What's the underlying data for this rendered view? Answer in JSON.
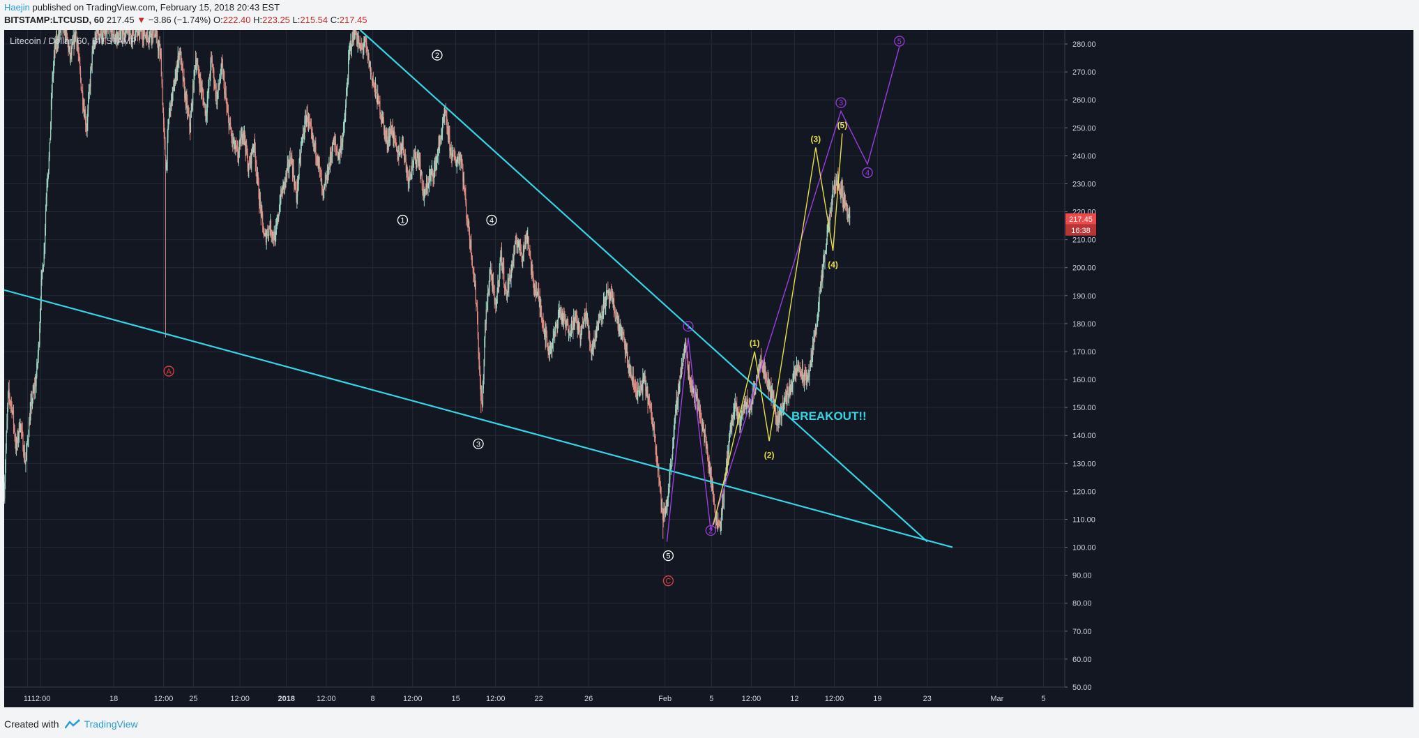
{
  "header": {
    "author": "Haejin",
    "published_text": "published on TradingView.com, February 15, 2018 20:43 EST",
    "symbol": "BITSTAMP:LTCUSD, 60",
    "last": "217.45",
    "arrow": "▼",
    "change": "−3.86 (−1.74%)",
    "o_label": "O:",
    "o_val": "222.40",
    "h_label": "H:",
    "h_val": "223.25",
    "l_label": "L:",
    "l_val": "215.54",
    "c_label": "C:",
    "c_val": "217.45"
  },
  "footer": {
    "created_with": "Created with",
    "brand": "TradingView"
  },
  "colors": {
    "background": "#131722",
    "grid": "#262a36",
    "bull": "#9fd4c3",
    "bear": "#e08a82",
    "trendline": "#33d6e6",
    "purple": "#9a3ee0",
    "yellow": "#e8e04a",
    "red": "#e04040",
    "white": "#ffffff",
    "price_tag": "#ec4a4a"
  },
  "chart_data": {
    "type": "candlestick",
    "title": "Litecoin / Dollar, 60, BITSTAMP",
    "y_axis": {
      "range": [
        50,
        285
      ],
      "ticks": [
        "50.00",
        "60.00",
        "70.00",
        "80.00",
        "90.00",
        "100.00",
        "110.00",
        "120.00",
        "130.00",
        "140.00",
        "150.00",
        "160.00",
        "170.00",
        "180.00",
        "190.00",
        "200.00",
        "210.00",
        "220.00",
        "230.00",
        "240.00",
        "250.00",
        "260.00",
        "270.00",
        "280.00"
      ]
    },
    "x_axis": {
      "range_days": [
        0,
        79.8
      ],
      "ticks": [
        {
          "label": "11",
          "day": 1.76
        },
        {
          "label": "12:00",
          "day": 2.76
        },
        {
          "label": "18",
          "day": 8.25
        },
        {
          "label": "12:00",
          "day": 12.0
        },
        {
          "label": "25",
          "day": 14.25
        },
        {
          "label": "12:00",
          "day": 17.75
        },
        {
          "label": "2018",
          "day": 21.25
        },
        {
          "label": "12:00",
          "day": 24.25
        },
        {
          "label": "8",
          "day": 27.75
        },
        {
          "label": "12:00",
          "day": 30.75
        },
        {
          "label": "15",
          "day": 34.0
        },
        {
          "label": "12:00",
          "day": 37.0
        },
        {
          "label": "22",
          "day": 40.25
        },
        {
          "label": "26",
          "day": 44.0
        },
        {
          "label": "Feb",
          "day": 49.75
        },
        {
          "label": "5",
          "day": 53.25
        },
        {
          "label": "12:00",
          "day": 56.25
        },
        {
          "label": "12",
          "day": 59.5
        },
        {
          "label": "12:00",
          "day": 62.5
        },
        {
          "label": "19",
          "day": 65.75
        },
        {
          "label": "23",
          "day": 69.5
        },
        {
          "label": "Mar",
          "day": 74.75
        },
        {
          "label": "5",
          "day": 78.25
        }
      ]
    },
    "last_price": "217.45",
    "countdown": "16:38",
    "price_path": [
      [
        0.0,
        120
      ],
      [
        0.3,
        155
      ],
      [
        0.6,
        150
      ],
      [
        0.9,
        135
      ],
      [
        1.2,
        145
      ],
      [
        1.6,
        130
      ],
      [
        2.0,
        150
      ],
      [
        2.4,
        160
      ],
      [
        2.6,
        172
      ],
      [
        2.8,
        195
      ],
      [
        3.0,
        205
      ],
      [
        3.2,
        230
      ],
      [
        3.4,
        240
      ],
      [
        3.6,
        265
      ],
      [
        3.8,
        278
      ],
      [
        4.2,
        285
      ],
      [
        4.6,
        285
      ],
      [
        5.0,
        275
      ],
      [
        5.4,
        285
      ],
      [
        5.8,
        265
      ],
      [
        6.2,
        250
      ],
      [
        6.6,
        275
      ],
      [
        7.0,
        285
      ],
      [
        7.4,
        283
      ],
      [
        8.0,
        285
      ],
      [
        8.5,
        282
      ],
      [
        9.0,
        285
      ],
      [
        9.6,
        283
      ],
      [
        10.2,
        285
      ],
      [
        10.8,
        283
      ],
      [
        11.3,
        285
      ],
      [
        11.8,
        275
      ],
      [
        12.0,
        250
      ],
      [
        12.2,
        235
      ],
      [
        12.4,
        255
      ],
      [
        12.8,
        265
      ],
      [
        13.2,
        278
      ],
      [
        13.6,
        262
      ],
      [
        14.0,
        250
      ],
      [
        14.4,
        275
      ],
      [
        14.8,
        265
      ],
      [
        15.2,
        255
      ],
      [
        15.6,
        275
      ],
      [
        16.0,
        260
      ],
      [
        16.4,
        272
      ],
      [
        16.8,
        255
      ],
      [
        17.2,
        245
      ],
      [
        17.6,
        240
      ],
      [
        18.0,
        250
      ],
      [
        18.4,
        235
      ],
      [
        18.8,
        245
      ],
      [
        19.2,
        225
      ],
      [
        19.6,
        210
      ],
      [
        20.0,
        215
      ],
      [
        20.4,
        210
      ],
      [
        20.8,
        225
      ],
      [
        21.2,
        232
      ],
      [
        21.6,
        240
      ],
      [
        22.0,
        225
      ],
      [
        22.4,
        245
      ],
      [
        22.8,
        255
      ],
      [
        23.2,
        245
      ],
      [
        23.6,
        240
      ],
      [
        24.0,
        225
      ],
      [
        24.4,
        235
      ],
      [
        24.8,
        245
      ],
      [
        25.2,
        240
      ],
      [
        25.6,
        250
      ],
      [
        26.0,
        278
      ],
      [
        26.4,
        285
      ],
      [
        26.8,
        278
      ],
      [
        27.2,
        280
      ],
      [
        27.6,
        270
      ],
      [
        28.0,
        262
      ],
      [
        28.4,
        255
      ],
      [
        28.8,
        245
      ],
      [
        29.2,
        250
      ],
      [
        29.6,
        240
      ],
      [
        30.0,
        245
      ],
      [
        30.4,
        232
      ],
      [
        30.8,
        238
      ],
      [
        31.2,
        240
      ],
      [
        31.6,
        225
      ],
      [
        32.0,
        232
      ],
      [
        32.4,
        235
      ],
      [
        32.8,
        245
      ],
      [
        33.2,
        255
      ],
      [
        33.6,
        242
      ],
      [
        34.0,
        238
      ],
      [
        34.4,
        240
      ],
      [
        34.8,
        220
      ],
      [
        35.2,
        205
      ],
      [
        35.6,
        185
      ],
      [
        35.8,
        160
      ],
      [
        36.0,
        150
      ],
      [
        36.2,
        178
      ],
      [
        36.6,
        200
      ],
      [
        37.0,
        185
      ],
      [
        37.4,
        205
      ],
      [
        37.8,
        190
      ],
      [
        38.2,
        200
      ],
      [
        38.6,
        210
      ],
      [
        39.0,
        205
      ],
      [
        39.4,
        212
      ],
      [
        39.8,
        195
      ],
      [
        40.2,
        190
      ],
      [
        40.6,
        180
      ],
      [
        41.0,
        170
      ],
      [
        41.4,
        175
      ],
      [
        41.8,
        185
      ],
      [
        42.2,
        180
      ],
      [
        42.6,
        178
      ],
      [
        43.0,
        182
      ],
      [
        43.4,
        176
      ],
      [
        43.8,
        184
      ],
      [
        44.2,
        170
      ],
      [
        44.6,
        178
      ],
      [
        45.0,
        185
      ],
      [
        45.4,
        190
      ],
      [
        45.8,
        188
      ],
      [
        46.2,
        180
      ],
      [
        46.6,
        175
      ],
      [
        47.0,
        165
      ],
      [
        47.4,
        158
      ],
      [
        47.8,
        155
      ],
      [
        48.2,
        160
      ],
      [
        48.6,
        150
      ],
      [
        49.0,
        140
      ],
      [
        49.3,
        125
      ],
      [
        49.6,
        110
      ],
      [
        49.9,
        115
      ],
      [
        50.2,
        130
      ],
      [
        50.6,
        150
      ],
      [
        51.0,
        165
      ],
      [
        51.3,
        172
      ],
      [
        51.6,
        160
      ],
      [
        52.0,
        155
      ],
      [
        52.4,
        148
      ],
      [
        52.8,
        138
      ],
      [
        53.2,
        125
      ],
      [
        53.6,
        110
      ],
      [
        53.9,
        108
      ],
      [
        54.2,
        120
      ],
      [
        54.6,
        140
      ],
      [
        55.0,
        150
      ],
      [
        55.4,
        145
      ],
      [
        55.8,
        152
      ],
      [
        56.2,
        150
      ],
      [
        56.6,
        160
      ],
      [
        57.0,
        168
      ],
      [
        57.4,
        160
      ],
      [
        57.8,
        155
      ],
      [
        58.2,
        145
      ],
      [
        58.6,
        150
      ],
      [
        59.0,
        155
      ],
      [
        59.4,
        160
      ],
      [
        59.8,
        165
      ],
      [
        60.2,
        160
      ],
      [
        60.6,
        162
      ],
      [
        61.0,
        175
      ],
      [
        61.4,
        190
      ],
      [
        61.8,
        205
      ],
      [
        62.2,
        220
      ],
      [
        62.6,
        232
      ],
      [
        63.0,
        228
      ],
      [
        63.4,
        222
      ],
      [
        63.7,
        217
      ]
    ],
    "trendlines": [
      {
        "from": [
          0.0,
          192
        ],
        "to": [
          71.4,
          100
        ]
      },
      {
        "from": [
          26.8,
          285
        ],
        "to": [
          69.5,
          102
        ]
      }
    ],
    "annotations": [
      {
        "text": "A",
        "day": 12.4,
        "price": 163,
        "color": "red",
        "kind": "circled"
      },
      {
        "text": "C",
        "day": 50.0,
        "price": 88,
        "color": "red",
        "kind": "circled"
      },
      {
        "text": "1",
        "day": 30.0,
        "price": 217,
        "color": "white",
        "kind": "circled"
      },
      {
        "text": "2",
        "day": 32.6,
        "price": 276,
        "color": "white",
        "kind": "circled"
      },
      {
        "text": "3",
        "day": 35.7,
        "price": 137,
        "color": "white",
        "kind": "circled"
      },
      {
        "text": "4",
        "day": 36.7,
        "price": 217,
        "color": "white",
        "kind": "circled"
      },
      {
        "text": "5",
        "day": 50.0,
        "price": 97,
        "color": "white",
        "kind": "circled"
      },
      {
        "text": "1",
        "day": 51.5,
        "price": 179,
        "color": "purple",
        "kind": "circled"
      },
      {
        "text": "2",
        "day": 53.2,
        "price": 106,
        "color": "purple",
        "kind": "circled"
      },
      {
        "text": "3",
        "day": 63.0,
        "price": 259,
        "color": "purple",
        "kind": "circled"
      },
      {
        "text": "4",
        "day": 65.0,
        "price": 234,
        "color": "purple",
        "kind": "circled"
      },
      {
        "text": "5",
        "day": 67.4,
        "price": 281,
        "color": "purple",
        "kind": "circled"
      },
      {
        "text": "(1)",
        "day": 56.5,
        "price": 173,
        "color": "yellow",
        "kind": "label"
      },
      {
        "text": "(2)",
        "day": 57.6,
        "price": 133,
        "color": "yellow",
        "kind": "label"
      },
      {
        "text": "(3)",
        "day": 61.1,
        "price": 246,
        "color": "yellow",
        "kind": "label"
      },
      {
        "text": "(4)",
        "day": 62.4,
        "price": 201,
        "color": "yellow",
        "kind": "label"
      },
      {
        "text": "(5)",
        "day": 63.1,
        "price": 251,
        "color": "yellow",
        "kind": "label"
      },
      {
        "text": "BREAKOUT!!",
        "day": 62.1,
        "price": 147,
        "color": "trendline",
        "kind": "big"
      }
    ],
    "purple_path": [
      [
        49.9,
        102
      ],
      [
        51.5,
        175
      ],
      [
        53.2,
        106
      ],
      [
        63.0,
        256
      ],
      [
        65.0,
        237
      ],
      [
        67.4,
        279
      ]
    ],
    "yellow_path": [
      [
        53.4,
        108
      ],
      [
        56.5,
        170
      ],
      [
        57.6,
        138
      ],
      [
        61.1,
        243
      ],
      [
        62.4,
        206
      ],
      [
        63.1,
        248
      ]
    ]
  }
}
